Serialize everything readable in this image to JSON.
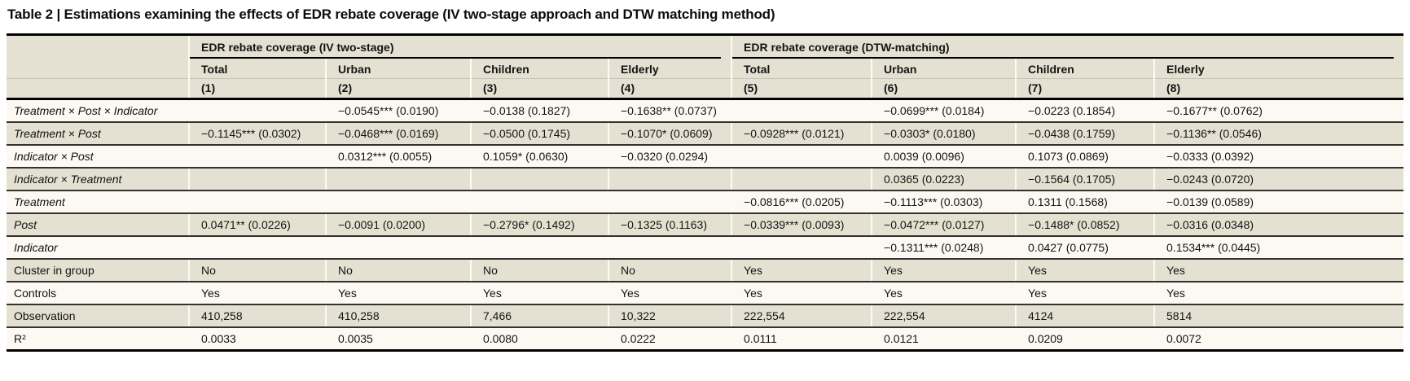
{
  "colors": {
    "header_bg": "#e4e1d3",
    "row_light_bg": "#fbf9f2",
    "row_alt_bg": "#e4e1d3",
    "rule_heavy": "#000000",
    "rule_row": "#33322f"
  },
  "chart_data": {
    "type": "table",
    "title": "Table 2 | Estimations examining the effects of EDR rebate coverage (IV two-stage approach and DTW matching method)",
    "column_groups": [
      {
        "label": "EDR rebate coverage (IV two-stage)",
        "span": 4
      },
      {
        "label": "EDR rebate coverage (DTW-matching)",
        "span": 4
      }
    ],
    "columns": [
      {
        "name": "Total",
        "number": "(1)"
      },
      {
        "name": "Urban",
        "number": "(2)"
      },
      {
        "name": "Children",
        "number": "(3)"
      },
      {
        "name": "Elderly",
        "number": "(4)"
      },
      {
        "name": "Total",
        "number": "(5)"
      },
      {
        "name": "Urban",
        "number": "(6)"
      },
      {
        "name": "Children",
        "number": "(7)"
      },
      {
        "name": "Elderly",
        "number": "(8)"
      }
    ],
    "rows": [
      {
        "label": "Treatment × Post × Indicator",
        "italic": true,
        "cells": [
          "",
          "−0.0545*** (0.0190)",
          "−0.0138 (0.1827)",
          "−0.1638** (0.0737)",
          "",
          "−0.0699*** (0.0184)",
          "−0.0223 (0.1854)",
          "−0.1677** (0.0762)"
        ]
      },
      {
        "label": "Treatment × Post",
        "italic": true,
        "cells": [
          "−0.1145*** (0.0302)",
          "−0.0468*** (0.0169)",
          "−0.0500 (0.1745)",
          "−0.1070* (0.0609)",
          "−0.0928*** (0.0121)",
          "−0.0303* (0.0180)",
          "−0.0438 (0.1759)",
          "−0.1136** (0.0546)"
        ]
      },
      {
        "label": "Indicator × Post",
        "italic": true,
        "cells": [
          "",
          "0.0312*** (0.0055)",
          "0.1059* (0.0630)",
          "−0.0320 (0.0294)",
          "",
          "0.0039 (0.0096)",
          "0.1073 (0.0869)",
          "−0.0333 (0.0392)"
        ]
      },
      {
        "label": "Indicator × Treatment",
        "italic": true,
        "cells": [
          "",
          "",
          "",
          "",
          "",
          "0.0365 (0.0223)",
          "−0.1564 (0.1705)",
          "−0.0243 (0.0720)"
        ]
      },
      {
        "label": "Treatment",
        "italic": true,
        "cells": [
          "",
          "",
          "",
          "",
          "−0.0816*** (0.0205)",
          "−0.1113*** (0.0303)",
          "0.1311 (0.1568)",
          "−0.0139 (0.0589)"
        ]
      },
      {
        "label": "Post",
        "italic": true,
        "cells": [
          "0.0471** (0.0226)",
          "−0.0091 (0.0200)",
          "−0.2796* (0.1492)",
          "−0.1325 (0.1163)",
          "−0.0339*** (0.0093)",
          "−0.0472*** (0.0127)",
          "−0.1488* (0.0852)",
          "−0.0316 (0.0348)"
        ]
      },
      {
        "label": "Indicator",
        "italic": true,
        "cells": [
          "",
          "",
          "",
          "",
          "",
          "−0.1311*** (0.0248)",
          "0.0427 (0.0775)",
          "0.1534*** (0.0445)"
        ]
      },
      {
        "label": "Cluster in group",
        "italic": false,
        "cells": [
          "No",
          "No",
          "No",
          "No",
          "Yes",
          "Yes",
          "Yes",
          "Yes"
        ]
      },
      {
        "label": "Controls",
        "italic": false,
        "cells": [
          "Yes",
          "Yes",
          "Yes",
          "Yes",
          "Yes",
          "Yes",
          "Yes",
          "Yes"
        ]
      },
      {
        "label": "Observation",
        "italic": false,
        "cells": [
          "410,258",
          "410,258",
          "7,466",
          "10,322",
          "222,554",
          "222,554",
          "4124",
          "5814"
        ]
      },
      {
        "label": "R²",
        "italic": false,
        "cells": [
          "0.0033",
          "0.0035",
          "0.0080",
          "0.0222",
          "0.0111",
          "0.0121",
          "0.0209",
          "0.0072"
        ]
      }
    ]
  }
}
